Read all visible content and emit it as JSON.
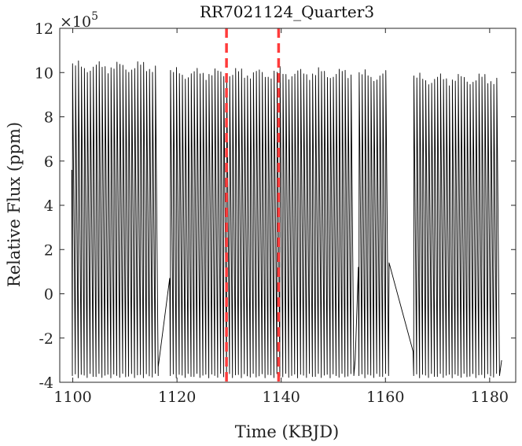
{
  "chart_data": {
    "type": "line",
    "title": "RR7021124_Quarter3",
    "xlabel": "Time (KBJD)",
    "ylabel": "Relative Flux (ppm)",
    "xlim": [
      1097.5,
      1185
    ],
    "ylim": [
      -400000,
      1200000
    ],
    "y_exponent_label": "×10",
    "y_exponent_power": "5",
    "xticks": [
      1100,
      1120,
      1140,
      1160,
      1180
    ],
    "xtick_labels": [
      "1100",
      "1120",
      "1140",
      "1160",
      "1180"
    ],
    "yticks": [
      -400000,
      -200000,
      0,
      200000,
      400000,
      600000,
      800000,
      1000000,
      1200000
    ],
    "ytick_labels": [
      "-4",
      "-2",
      "0",
      "2",
      "4",
      "6",
      "8",
      "10",
      "12"
    ],
    "grid": false,
    "series": [
      {
        "color": "#000000",
        "pulsation_period_days": 0.568,
        "segments": [
          {
            "start": 1099.8,
            "end": 1116.4,
            "max": 1040000,
            "min": -370000,
            "start_value": 560000,
            "end_value": -330000
          },
          {
            "start": 1116.4,
            "end": 1118.6,
            "linear": true,
            "start_value": -330000,
            "end_value": 70000
          },
          {
            "start": 1118.6,
            "end": 1154.2,
            "max": 1010000,
            "min": -370000,
            "start_value": 70000,
            "end_value": -300000
          },
          {
            "start": 1154.2,
            "end": 1154.8,
            "linear": true,
            "start_value": -300000,
            "end_value": 120000
          },
          {
            "start": 1154.8,
            "end": 1160.7,
            "max": 1000000,
            "min": -370000,
            "start_value": 120000,
            "end_value": 140000
          },
          {
            "start": 1160.7,
            "end": 1165.3,
            "linear": true,
            "start_value": 140000,
            "end_value": -260000
          },
          {
            "start": 1165.3,
            "end": 1182.3,
            "max": 985000,
            "min": -370000,
            "start_value": -260000,
            "end_value": -300000
          }
        ]
      }
    ],
    "vlines": [
      {
        "x": 1129.5,
        "color": "#ff3b3b",
        "style": "dashed"
      },
      {
        "x": 1139.5,
        "color": "#ff3b3b",
        "style": "dashed"
      }
    ]
  }
}
